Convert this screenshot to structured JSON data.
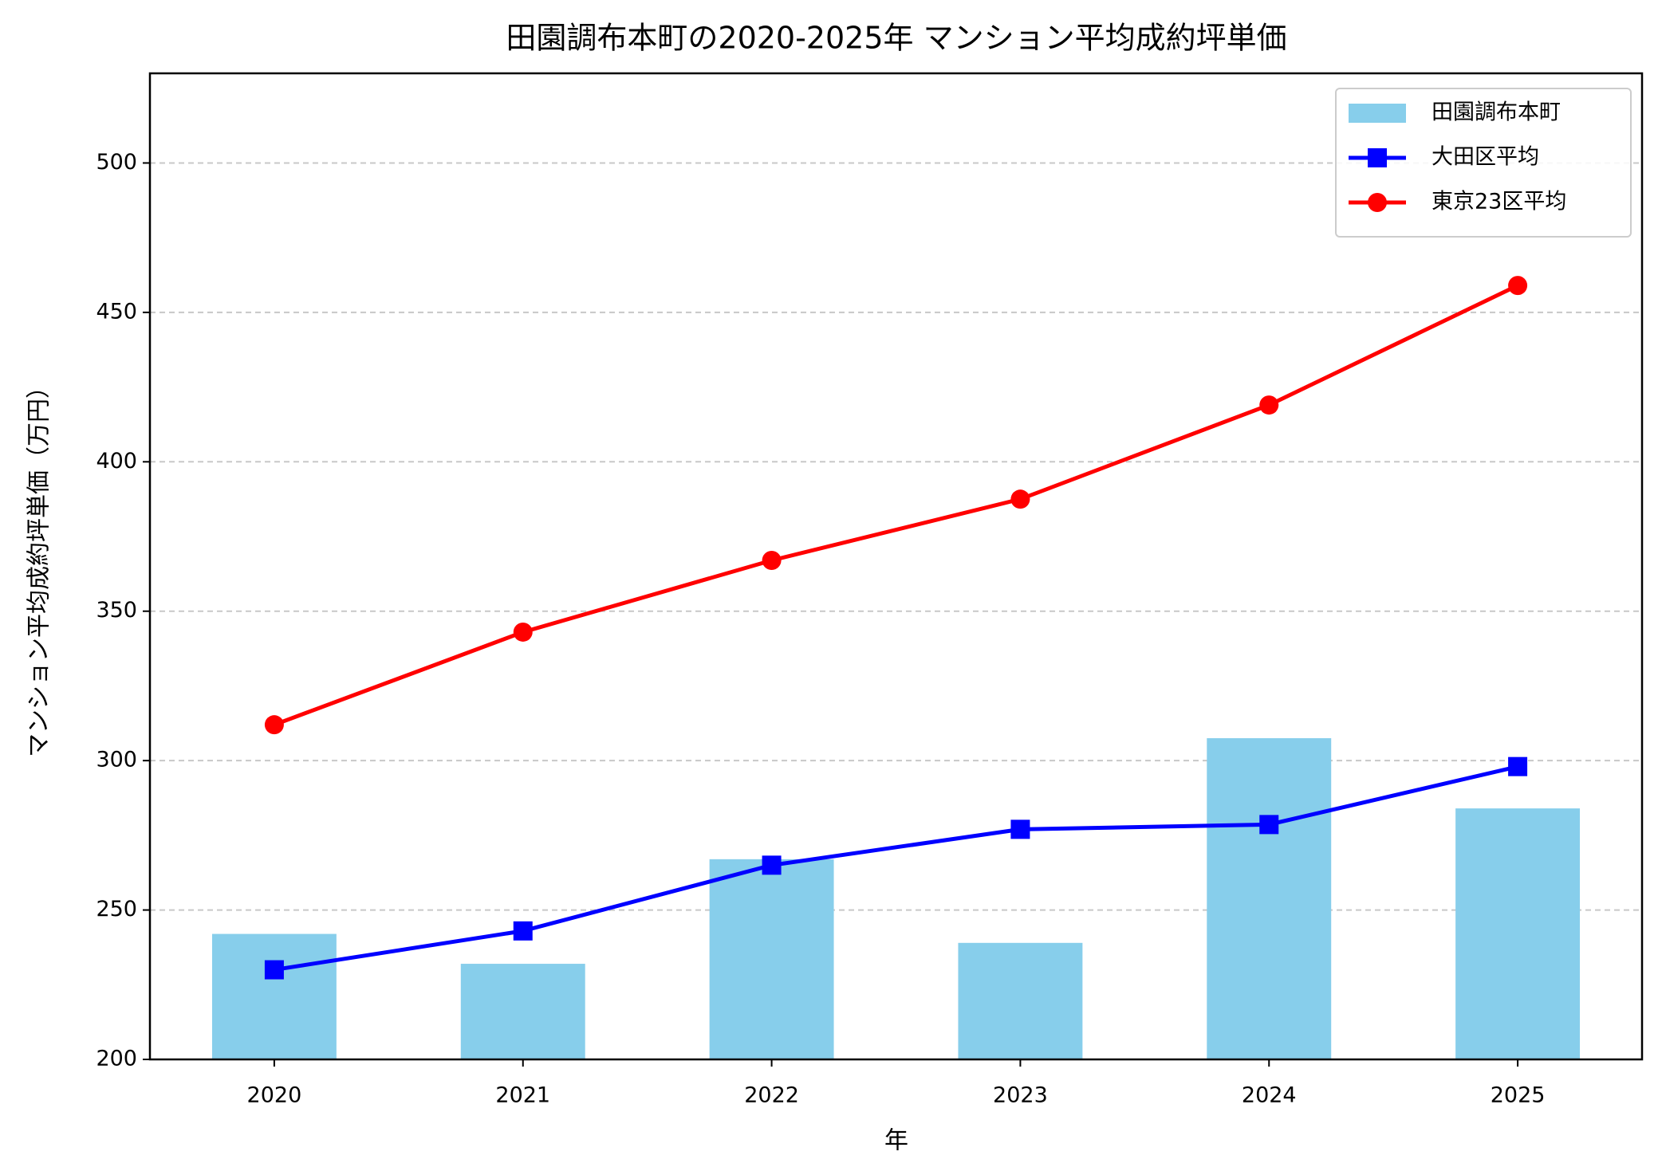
{
  "chart_data": {
    "type": "bar",
    "title": "田園調布本町の2020-2025年 マンション平均成約坪単価",
    "x_label": "年",
    "y_label": "マンション平均成約坪単価（万円）",
    "categories": [
      "2020",
      "2021",
      "2022",
      "2023",
      "2024",
      "2025"
    ],
    "series": [
      {
        "name": "田園調布本町",
        "type": "bar",
        "color": "#87ceeb",
        "values": [
          242,
          232,
          267,
          239,
          307.5,
          284
        ]
      },
      {
        "name": "大田区平均",
        "type": "line",
        "marker": "square",
        "color": "#0000ff",
        "values": [
          230,
          243,
          265,
          277,
          278.6,
          298
        ]
      },
      {
        "name": "東京23区平均",
        "type": "line",
        "marker": "circle",
        "color": "#ff0000",
        "values": [
          312,
          343,
          367,
          387.5,
          419,
          459
        ]
      }
    ],
    "ylim": [
      200,
      530
    ],
    "yticks": [
      200,
      250,
      300,
      350,
      400,
      450,
      500
    ],
    "grid": true,
    "legend": "upper right"
  }
}
